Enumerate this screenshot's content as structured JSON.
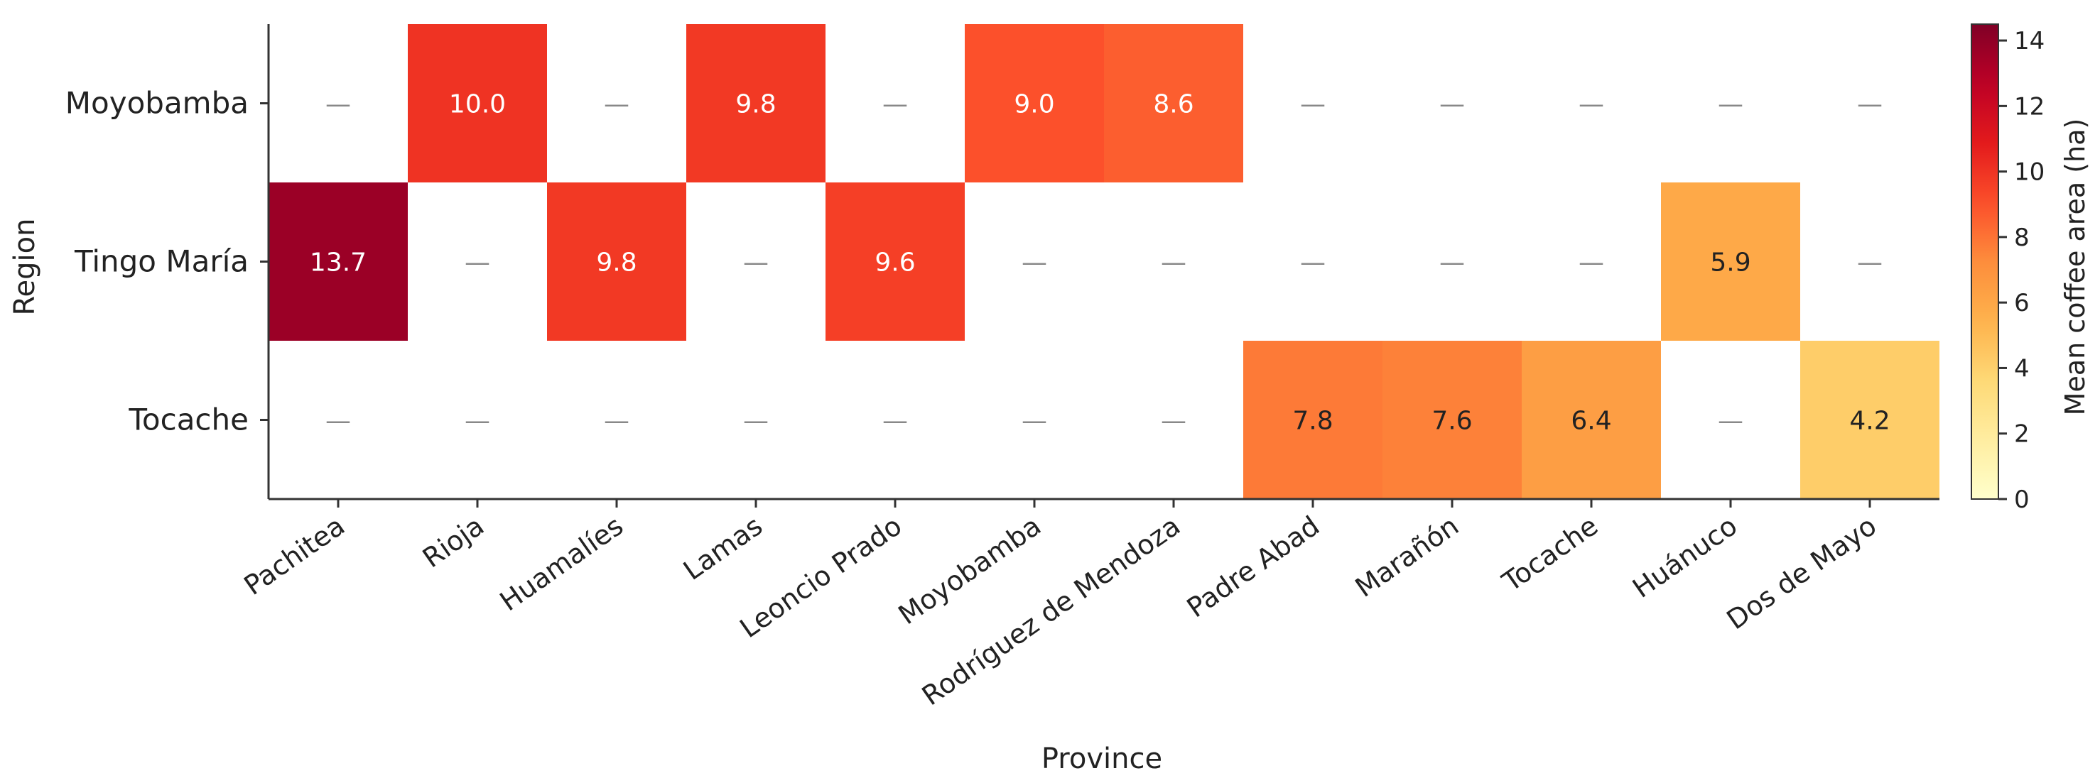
{
  "chart_data": {
    "type": "heatmap",
    "xlabel": "Province",
    "ylabel": "Region",
    "x_categories": [
      "Pachitea",
      "Rioja",
      "Huamalíes",
      "Lamas",
      "Leoncio Prado",
      "Moyobamba",
      "Rodríguez de Mendoza",
      "Padre Abad",
      "Marañón",
      "Tocache",
      "Huánuco",
      "Dos de Mayo"
    ],
    "y_categories": [
      "Moyobamba",
      "Tingo María",
      "Tocache"
    ],
    "values": [
      [
        null,
        10.0,
        null,
        9.8,
        null,
        9.0,
        8.6,
        null,
        null,
        null,
        null,
        null
      ],
      [
        13.7,
        null,
        9.8,
        null,
        9.6,
        null,
        null,
        null,
        null,
        null,
        5.9,
        null
      ],
      [
        null,
        null,
        null,
        null,
        null,
        null,
        null,
        7.8,
        7.6,
        6.4,
        null,
        4.2
      ]
    ],
    "missing_label": "—",
    "colorbar": {
      "label": "Mean coffee area (ha)",
      "range": [
        0,
        14.5
      ],
      "ticks": [
        0,
        2,
        4,
        6,
        8,
        10,
        12,
        14
      ],
      "colormap": "YlOrRd"
    },
    "grid": false
  }
}
